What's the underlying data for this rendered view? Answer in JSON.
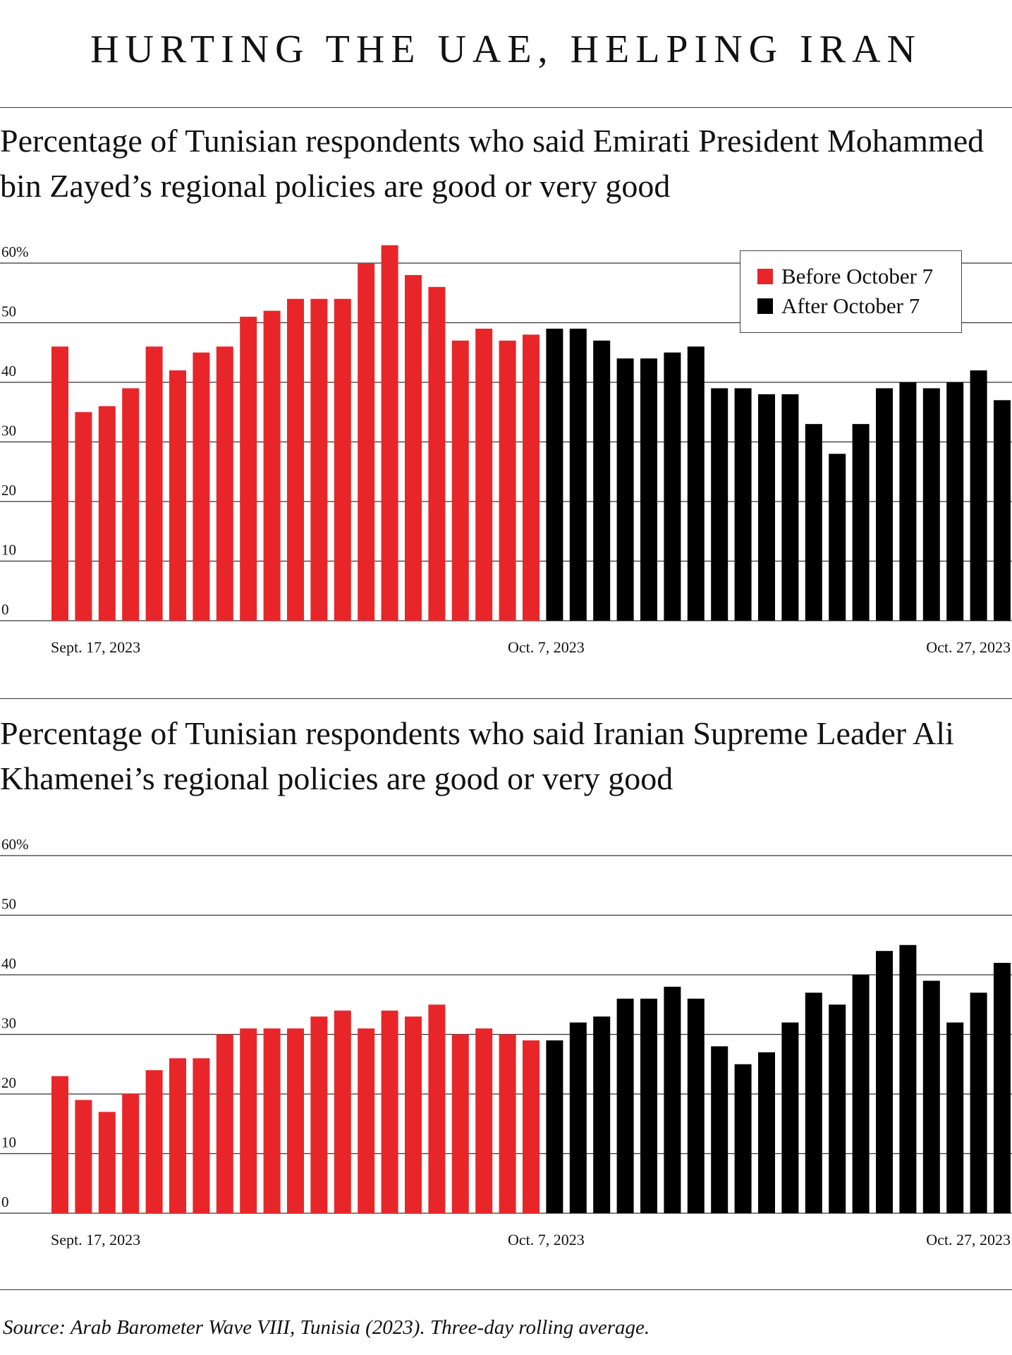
{
  "headline": "HURTING THE UAE, HELPING IRAN",
  "source": "Source: Arab Barometer Wave VIII, Tunisia (2023). Three-day rolling average.",
  "colors": {
    "before": "#e8262a",
    "after": "#000000",
    "grid": "#333333"
  },
  "legend": {
    "before": "Before October 7",
    "after": "After October 7"
  },
  "chart_data": [
    {
      "type": "bar",
      "title": "Percentage of Tunisian respondents who said Emirati President Mohammed bin Zayed’s regional policies are good or very good",
      "ylim": [
        0,
        60
      ],
      "y_ticks": [
        "60%",
        "50",
        "40",
        "30",
        "20",
        "10",
        "0"
      ],
      "x_tick_labels": [
        "Sept. 17, 2023",
        "Oct. 7, 2023",
        "Oct. 27, 2023"
      ],
      "grid": true,
      "legend_position": "top-right",
      "series": [
        {
          "name": "Before October 7",
          "values": [
            46,
            35,
            36,
            39,
            46,
            42,
            45,
            46,
            51,
            52,
            54,
            54,
            54,
            60,
            63,
            58,
            56,
            47,
            49,
            47,
            48
          ]
        },
        {
          "name": "After October 7",
          "values": [
            49,
            49,
            47,
            44,
            44,
            45,
            46,
            39,
            39,
            38,
            38,
            33,
            28,
            33,
            39,
            40,
            39,
            40,
            42,
            37
          ]
        }
      ]
    },
    {
      "type": "bar",
      "title": "Percentage of Tunisian respondents who said Iranian Supreme Leader Ali Khamenei’s regional policies are good or very good",
      "ylim": [
        0,
        60
      ],
      "y_ticks": [
        "60%",
        "50",
        "40",
        "30",
        "20",
        "10",
        "0"
      ],
      "x_tick_labels": [
        "Sept. 17, 2023",
        "Oct. 7, 2023",
        "Oct. 27, 2023"
      ],
      "grid": true,
      "series": [
        {
          "name": "Before October 7",
          "values": [
            23,
            19,
            17,
            20,
            24,
            26,
            26,
            30,
            31,
            31,
            31,
            33,
            34,
            31,
            34,
            33,
            35,
            30,
            31,
            30,
            29
          ]
        },
        {
          "name": "After October 7",
          "values": [
            29,
            32,
            33,
            36,
            36,
            38,
            36,
            28,
            25,
            27,
            32,
            37,
            35,
            40,
            44,
            45,
            39,
            32,
            37,
            42
          ]
        }
      ]
    }
  ]
}
